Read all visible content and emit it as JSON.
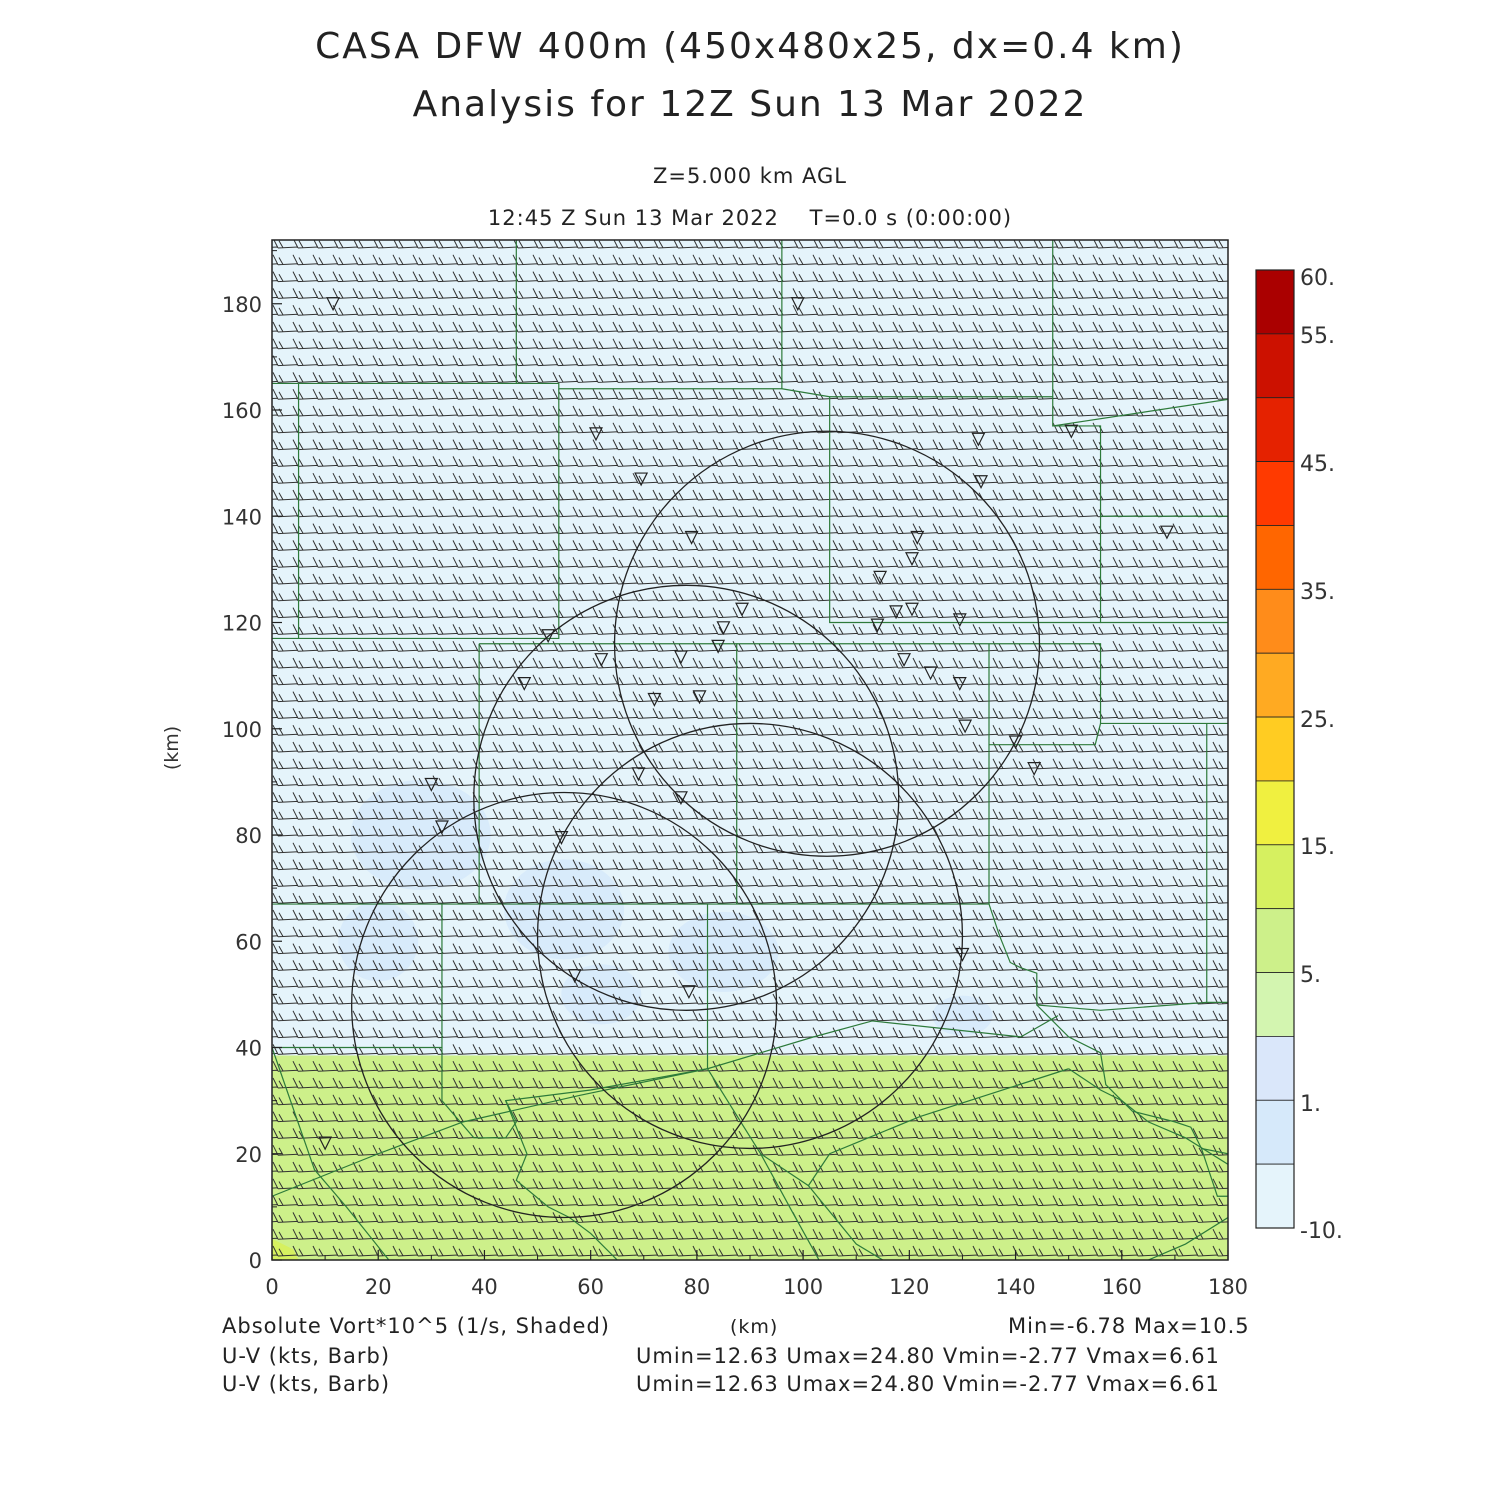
{
  "title": "CASA DFW 400m (450x480x25, dx=0.4 km)",
  "subtitle": "Analysis for 12Z Sun 13 Mar 2022",
  "level": "Z=5.000 km AGL",
  "valid_time": "12:45 Z Sun 13 Mar 2022",
  "time_offset": "T=0.0 s (0:00:00)",
  "footer": {
    "field1": "Absolute Vort*10^5 (1/s, Shaded)",
    "x_unit": "(km)",
    "field1_range": "Min=-6.78 Max=10.5",
    "field2": "U-V (kts, Barb)",
    "field2_range": "Umin=12.63 Umax=24.80 Vmin=-2.77 Vmax=6.61",
    "field3": "U-V (kts, Barb)",
    "field3_range": "Umin=12.63 Umax=24.80 Vmin=-2.77 Vmax=6.61"
  },
  "map": {
    "xlabel": "(km)",
    "ylabel": "(km)",
    "x_range": [
      0,
      180
    ],
    "y_range": [
      0,
      192
    ],
    "x_ticks": [
      0,
      20,
      40,
      60,
      80,
      100,
      120,
      140,
      160,
      180
    ],
    "y_ticks": [
      0,
      20,
      40,
      60,
      80,
      100,
      120,
      140,
      160,
      180
    ],
    "colorbar": {
      "labels": [
        "60.",
        "55.",
        "45.",
        "35.",
        "25.",
        "15.",
        "5.",
        "1.",
        "-10."
      ],
      "colors": [
        "#aa0000",
        "#cc1100",
        "#e52200",
        "#ff3a00",
        "#ff6600",
        "#ff8c1a",
        "#ffaa22",
        "#ffcc22",
        "#f0f040",
        "#d6f060",
        "#cdf08a",
        "#d3f5b0",
        "#dae7fa",
        "#d6e9fa",
        "#e5f4fb"
      ]
    },
    "shading_colors": {
      "background": "#e5f4fb",
      "low_vorticity": "#d6e9fa",
      "positive_band": "#cdf08a",
      "corner": "#d6f060"
    },
    "radar_rings": [
      {
        "cx": 104.5,
        "cy": 116,
        "r": 40
      },
      {
        "cx": 78,
        "cy": 87,
        "r": 40
      },
      {
        "cx": 90,
        "cy": 61,
        "r": 40
      },
      {
        "cx": 55,
        "cy": 48,
        "r": 40
      }
    ],
    "stations": [
      [
        11.5,
        180
      ],
      [
        99,
        180
      ],
      [
        61,
        155.5
      ],
      [
        69.5,
        147
      ],
      [
        79,
        136
      ],
      [
        133,
        154.5
      ],
      [
        133.5,
        146.5
      ],
      [
        150.5,
        156
      ],
      [
        168.5,
        137
      ],
      [
        114.5,
        128.5
      ],
      [
        121.5,
        136
      ],
      [
        120.5,
        132
      ],
      [
        117.5,
        122
      ],
      [
        120.5,
        122.5
      ],
      [
        129.5,
        120.5
      ],
      [
        114,
        119.5
      ],
      [
        88.5,
        122.5
      ],
      [
        85,
        119
      ],
      [
        84,
        115.5
      ],
      [
        52,
        117.5
      ],
      [
        62,
        113
      ],
      [
        77,
        113.5
      ],
      [
        47.5,
        108.5
      ],
      [
        72,
        105.5
      ],
      [
        80.5,
        106
      ],
      [
        119,
        113
      ],
      [
        124,
        110.5
      ],
      [
        129.5,
        108.5
      ],
      [
        130.5,
        100.5
      ],
      [
        140,
        97.5
      ],
      [
        143.5,
        92.5
      ],
      [
        69,
        91.5
      ],
      [
        77,
        87
      ],
      [
        30,
        89.5
      ],
      [
        32,
        81.5
      ],
      [
        54.5,
        79.5
      ],
      [
        130,
        57.5
      ],
      [
        57,
        53.5
      ],
      [
        78.5,
        50.5
      ],
      [
        10,
        22
      ]
    ]
  }
}
